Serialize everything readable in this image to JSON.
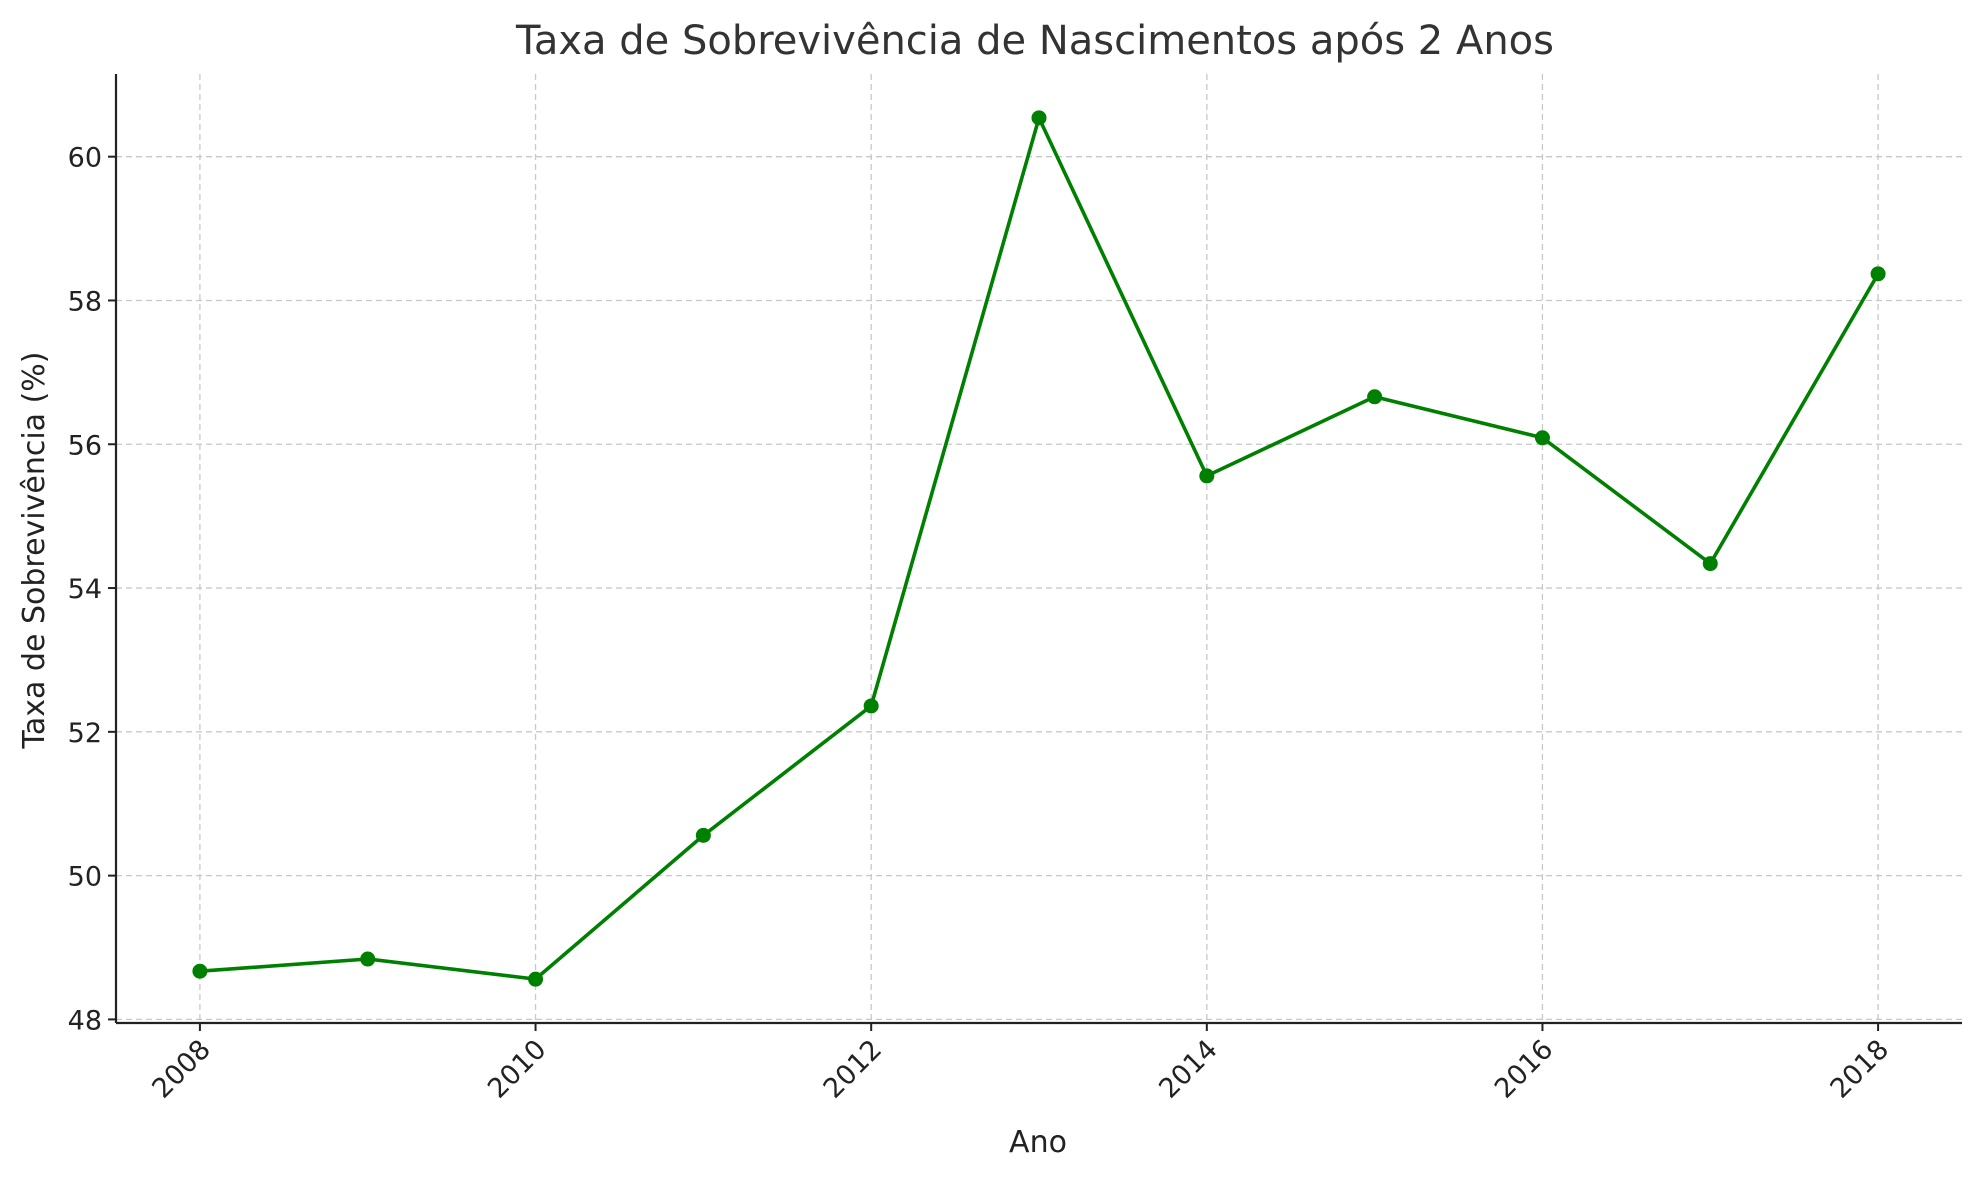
{
  "chart_data": {
    "type": "line",
    "title": "Taxa de Sobrevivência de Nascimentos após 2 Anos",
    "xlabel": "Ano",
    "ylabel": "Taxa de Sobrevivência (%)",
    "x": [
      2008,
      2009,
      2010,
      2011,
      2012,
      2013,
      2014,
      2015,
      2016,
      2017,
      2018
    ],
    "series": [
      {
        "values": [
          48.67,
          48.84,
          48.56,
          50.56,
          52.36,
          60.54,
          55.56,
          56.66,
          56.09,
          54.34,
          58.37
        ],
        "color": "#008000"
      }
    ],
    "xticks": [
      "2008",
      "2010",
      "2012",
      "2014",
      "2016",
      "2018"
    ],
    "yticks": [
      "48",
      "50",
      "52",
      "54",
      "56",
      "58",
      "60"
    ],
    "xlim": [
      2007.5,
      2018.5
    ],
    "ylim": [
      47.95,
      61.15
    ],
    "grid": true,
    "marker": "circle"
  }
}
